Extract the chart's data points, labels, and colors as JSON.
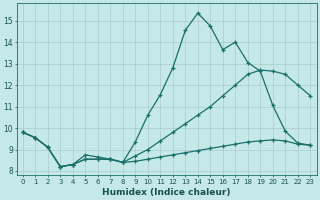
{
  "xlabel": "Humidex (Indice chaleur)",
  "bg_color": "#c5e8e8",
  "line_color": "#1a7068",
  "grid_color": "#aacccc",
  "xlim": [
    -0.5,
    23.5
  ],
  "ylim": [
    7.8,
    15.8
  ],
  "xticks": [
    0,
    1,
    2,
    3,
    4,
    5,
    6,
    7,
    8,
    9,
    10,
    11,
    12,
    13,
    14,
    15,
    16,
    17,
    18,
    19,
    20,
    21,
    22,
    23
  ],
  "yticks": [
    8,
    9,
    10,
    11,
    12,
    13,
    14,
    15
  ],
  "line1_x": [
    0,
    1,
    2,
    3,
    4,
    5,
    6,
    7,
    8,
    9,
    10,
    11,
    12,
    13,
    14,
    15,
    16,
    17,
    18,
    19,
    20,
    21,
    22,
    23
  ],
  "line1_y": [
    9.8,
    9.55,
    9.1,
    8.2,
    8.3,
    8.75,
    8.65,
    8.55,
    8.4,
    9.35,
    10.6,
    11.55,
    12.8,
    14.55,
    15.35,
    14.75,
    13.65,
    14.0,
    13.05,
    12.65,
    11.05,
    9.85,
    9.3,
    9.2
  ],
  "line2_x": [
    0,
    1,
    2,
    3,
    4,
    5,
    6,
    7,
    8,
    9,
    10,
    11,
    12,
    13,
    14,
    15,
    16,
    17,
    18,
    19,
    20,
    21,
    22,
    23
  ],
  "line2_y": [
    9.8,
    9.55,
    9.1,
    8.2,
    8.3,
    8.55,
    8.55,
    8.55,
    8.4,
    8.7,
    9.0,
    9.4,
    9.8,
    10.2,
    10.6,
    11.0,
    11.5,
    12.0,
    12.5,
    12.7,
    12.65,
    12.5,
    12.0,
    11.5
  ],
  "line3_x": [
    0,
    1,
    2,
    3,
    4,
    5,
    6,
    7,
    8,
    9,
    10,
    11,
    12,
    13,
    14,
    15,
    16,
    17,
    18,
    19,
    20,
    21,
    22,
    23
  ],
  "line3_y": [
    9.8,
    9.55,
    9.1,
    8.2,
    8.3,
    8.55,
    8.55,
    8.55,
    8.4,
    8.45,
    8.55,
    8.65,
    8.75,
    8.85,
    8.95,
    9.05,
    9.15,
    9.25,
    9.35,
    9.4,
    9.45,
    9.4,
    9.25,
    9.2
  ]
}
